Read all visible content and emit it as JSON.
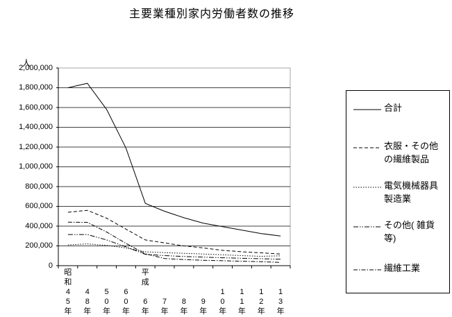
{
  "chart_data": {
    "type": "line",
    "title": "主要業種別家内労働者数の推移",
    "y_unit": "人",
    "xlabel": "",
    "ylabel": "人",
    "y_min": 0,
    "y_max": 2000000,
    "y_tick_step": 200000,
    "y_tick_labels": [
      "2,000,000",
      "1,800,000",
      "1,600,000",
      "1,400,000",
      "1,200,000",
      "1,000,000",
      "800,000",
      "600,000",
      "400,000",
      "200,000",
      "0"
    ],
    "y_tick_values": [
      2000000,
      1800000,
      1600000,
      1400000,
      1200000,
      1000000,
      800000,
      600000,
      400000,
      200000,
      0
    ],
    "grid": "horizontal",
    "legend_position": "right",
    "categories": [
      "昭和45年",
      "48年",
      "50年",
      "60年",
      "平成6年",
      "7年",
      "8年",
      "9年",
      "10年",
      "11年",
      "12年",
      "13年"
    ],
    "x_tick_label_rows": [
      [
        "昭",
        "和",
        "4",
        "5",
        "年"
      ],
      [
        "",
        "",
        "4",
        "8",
        "年"
      ],
      [
        "",
        "",
        "5",
        "0",
        "年"
      ],
      [
        "",
        "",
        "6",
        "0",
        "年"
      ],
      [
        "平",
        "成",
        "",
        "6",
        "年"
      ],
      [
        "",
        "",
        "",
        "7",
        "年"
      ],
      [
        "",
        "",
        "",
        "8",
        "年"
      ],
      [
        "",
        "",
        "",
        "9",
        "年"
      ],
      [
        "",
        "",
        "1",
        "0",
        "年"
      ],
      [
        "",
        "",
        "1",
        "1",
        "年"
      ],
      [
        "",
        "",
        "1",
        "2",
        "年"
      ],
      [
        "",
        "",
        "1",
        "3",
        "年"
      ]
    ],
    "series": [
      {
        "name": "合計",
        "legend_label": "合計",
        "style": "solid",
        "values": [
          1800000,
          1845000,
          1580000,
          1190000,
          630000,
          550000,
          485000,
          430000,
          395000,
          360000,
          325000,
          300000
        ]
      },
      {
        "name": "衣服・その他の繊維製品",
        "legend_label": "衣服・その他\nの繊維製品",
        "style": "dashed",
        "values": [
          540000,
          560000,
          480000,
          370000,
          260000,
          230000,
          200000,
          180000,
          155000,
          140000,
          130000,
          118000
        ]
      },
      {
        "name": "電気機械器具製造業",
        "legend_label": "電気機械器具\n製造業",
        "style": "dotted",
        "values": [
          210000,
          220000,
          205000,
          180000,
          140000,
          132000,
          125000,
          118000,
          110000,
          102000,
          95000,
          100000
        ]
      },
      {
        "name": "その他(雑貨等)",
        "legend_label": "その他( 雑貨\n等)",
        "style": "dash-dot-dot",
        "values": [
          315000,
          315000,
          260000,
          190000,
          115000,
          102000,
          93000,
          86000,
          80000,
          75000,
          70000,
          65000
        ]
      },
      {
        "name": "繊維工業",
        "legend_label": "繊維工業",
        "style": "dash-dot",
        "values": [
          440000,
          438000,
          340000,
          225000,
          120000,
          72000,
          62000,
          55000,
          50000,
          45000,
          40000,
          33000
        ]
      }
    ]
  }
}
